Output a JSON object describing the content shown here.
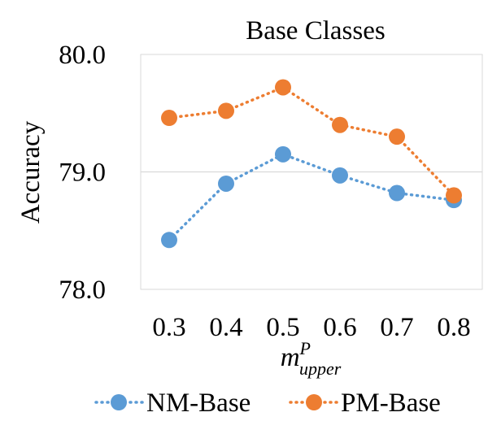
{
  "chart_data": {
    "type": "line",
    "title": "Base Classes",
    "ylabel": "Accuracy",
    "xlabel": {
      "base": "m",
      "sup": "P",
      "sub": "upper"
    },
    "categories": [
      "0.3",
      "0.4",
      "0.5",
      "0.6",
      "0.7",
      "0.8"
    ],
    "ylim": [
      78.0,
      80.0
    ],
    "yticks": [
      "78.0",
      "79.0",
      "80.0"
    ],
    "grid": true,
    "legend_position": "bottom",
    "series": [
      {
        "name": "NM-Base",
        "color": "#5B9BD5",
        "values": [
          78.42,
          78.9,
          79.15,
          78.97,
          78.82,
          78.76
        ]
      },
      {
        "name": "PM-Base",
        "color": "#ED7D31",
        "values": [
          79.46,
          79.52,
          79.72,
          79.4,
          79.3,
          78.8
        ]
      }
    ]
  }
}
